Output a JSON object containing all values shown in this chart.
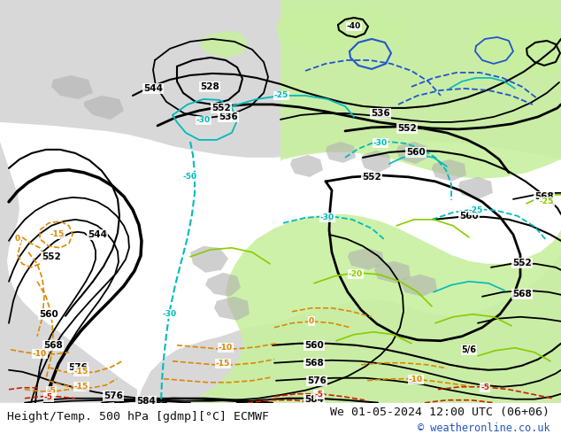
{
  "title_left": "Height/Temp. 500 hPa [gdmp][°C] ECMWF",
  "title_right": "We 01-05-2024 12:00 UTC (06+06)",
  "copyright": "© weatheronline.co.uk",
  "bg_ocean": "#ffffff",
  "bg_land": "#d8d8d8",
  "green_fill": "#c8f0a0",
  "gray_land_detail": "#b8b8b8",
  "bottom_bar_bg": "#e8e8e8",
  "text_color": "#111111",
  "copyright_color": "#2255bb",
  "figsize": [
    6.34,
    4.9
  ],
  "dpi": 100
}
